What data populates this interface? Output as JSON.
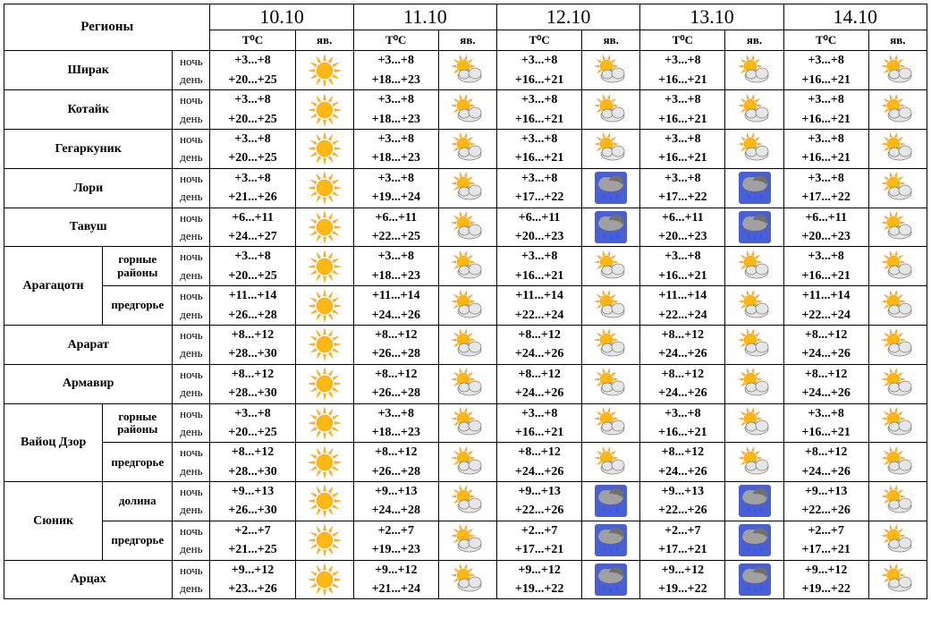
{
  "headers": {
    "regions": "Регионы",
    "temp": "T⁰C",
    "phen": "яв.",
    "night": "ночь",
    "day": "день"
  },
  "dates": [
    "10.10",
    "11.10",
    "12.10",
    "13.10",
    "14.10"
  ],
  "colors": {
    "sun_fill": "#fdb813",
    "sun_stroke": "#f7941d",
    "cloud_fill": "#e6e6e6",
    "cloud_stroke": "#808080",
    "rain_cloud_fill": "#a0a0a0",
    "rain_cloud_dark": "#707070",
    "rain_sky": "#4a5fd0",
    "rain_drop": "#3355ff"
  },
  "rows": [
    {
      "region": "Ширак",
      "sub": "",
      "cells": [
        {
          "n": "+3...+8",
          "d": "+20...+25",
          "icon": "sunny"
        },
        {
          "n": "+3...+8",
          "d": "+18...+23",
          "icon": "partly"
        },
        {
          "n": "+3...+8",
          "d": "+16...+21",
          "icon": "partly"
        },
        {
          "n": "+3...+8",
          "d": "+16...+21",
          "icon": "partly"
        },
        {
          "n": "+3...+8",
          "d": "+16...+21",
          "icon": "partly"
        }
      ]
    },
    {
      "region": "Котайк",
      "sub": "",
      "cells": [
        {
          "n": "+3...+8",
          "d": "+20...+25",
          "icon": "sunny"
        },
        {
          "n": "+3...+8",
          "d": "+18...+23",
          "icon": "partly"
        },
        {
          "n": "+3...+8",
          "d": "+16...+21",
          "icon": "partly"
        },
        {
          "n": "+3...+8",
          "d": "+16...+21",
          "icon": "partly"
        },
        {
          "n": "+3...+8",
          "d": "+16...+21",
          "icon": "partly"
        }
      ]
    },
    {
      "region": "Гегаркуник",
      "sub": "",
      "cells": [
        {
          "n": "+3...+8",
          "d": "+20...+25",
          "icon": "sunny"
        },
        {
          "n": "+3...+8",
          "d": "+18...+23",
          "icon": "partly"
        },
        {
          "n": "+3...+8",
          "d": "+16...+21",
          "icon": "partly"
        },
        {
          "n": "+3...+8",
          "d": "+16...+21",
          "icon": "partly"
        },
        {
          "n": "+3...+8",
          "d": "+16...+21",
          "icon": "partly"
        }
      ]
    },
    {
      "region": "Лори",
      "sub": "",
      "cells": [
        {
          "n": "+3...+8",
          "d": "+21...+26",
          "icon": "sunny"
        },
        {
          "n": "+3...+8",
          "d": "+19...+24",
          "icon": "partly"
        },
        {
          "n": "+3...+8",
          "d": "+17...+22",
          "icon": "rain"
        },
        {
          "n": "+3...+8",
          "d": "+17...+22",
          "icon": "rain"
        },
        {
          "n": "+3...+8",
          "d": "+17...+22",
          "icon": "partly"
        }
      ]
    },
    {
      "region": "Тавуш",
      "sub": "",
      "cells": [
        {
          "n": "+6...+11",
          "d": "+24...+27",
          "icon": "sunny"
        },
        {
          "n": "+6...+11",
          "d": "+22...+25",
          "icon": "partly"
        },
        {
          "n": "+6...+11",
          "d": "+20...+23",
          "icon": "rain"
        },
        {
          "n": "+6...+11",
          "d": "+20...+23",
          "icon": "rain"
        },
        {
          "n": "+6...+11",
          "d": "+20...+23",
          "icon": "partly"
        }
      ]
    },
    {
      "region": "Арагацотн",
      "sub": "горные районы",
      "cells": [
        {
          "n": "+3...+8",
          "d": "+20...+25",
          "icon": "sunny"
        },
        {
          "n": "+3...+8",
          "d": "+18...+23",
          "icon": "partly"
        },
        {
          "n": "+3...+8",
          "d": "+16...+21",
          "icon": "partly"
        },
        {
          "n": "+3...+8",
          "d": "+16...+21",
          "icon": "partly"
        },
        {
          "n": "+3...+8",
          "d": "+16...+21",
          "icon": "partly"
        }
      ]
    },
    {
      "region": "",
      "sub": "предгорье",
      "cells": [
        {
          "n": "+11...+14",
          "d": "+26...+28",
          "icon": "sunny"
        },
        {
          "n": "+11...+14",
          "d": "+24...+26",
          "icon": "partly"
        },
        {
          "n": "+11...+14",
          "d": "+22...+24",
          "icon": "partly"
        },
        {
          "n": "+11...+14",
          "d": "+22...+24",
          "icon": "partly"
        },
        {
          "n": "+11...+14",
          "d": "+22...+24",
          "icon": "partly"
        }
      ]
    },
    {
      "region": "Арарат",
      "sub": "",
      "cells": [
        {
          "n": "+8...+12",
          "d": "+28...+30",
          "icon": "sunny"
        },
        {
          "n": "+8...+12",
          "d": "+26...+28",
          "icon": "partly"
        },
        {
          "n": "+8...+12",
          "d": "+24...+26",
          "icon": "partly"
        },
        {
          "n": "+8...+12",
          "d": "+24...+26",
          "icon": "partly"
        },
        {
          "n": "+8...+12",
          "d": "+24...+26",
          "icon": "partly"
        }
      ]
    },
    {
      "region": "Армавир",
      "sub": "",
      "cells": [
        {
          "n": "+8...+12",
          "d": "+28...+30",
          "icon": "sunny"
        },
        {
          "n": "+8...+12",
          "d": "+26...+28",
          "icon": "partly"
        },
        {
          "n": "+8...+12",
          "d": "+24...+26",
          "icon": "partly"
        },
        {
          "n": "+8...+12",
          "d": "+24...+26",
          "icon": "partly"
        },
        {
          "n": "+8...+12",
          "d": "+24...+26",
          "icon": "partly"
        }
      ]
    },
    {
      "region": "Вайоц Дзор",
      "sub": "горные районы",
      "cells": [
        {
          "n": "+3...+8",
          "d": "+20...+25",
          "icon": "sunny"
        },
        {
          "n": "+3...+8",
          "d": "+18...+23",
          "icon": "partly"
        },
        {
          "n": "+3...+8",
          "d": "+16...+21",
          "icon": "partly"
        },
        {
          "n": "+3...+8",
          "d": "+16...+21",
          "icon": "partly"
        },
        {
          "n": "+3...+8",
          "d": "+16...+21",
          "icon": "partly"
        }
      ]
    },
    {
      "region": "",
      "sub": "предгорье",
      "cells": [
        {
          "n": "+8...+12",
          "d": "+28...+30",
          "icon": "sunny"
        },
        {
          "n": "+8...+12",
          "d": "+26...+28",
          "icon": "partly"
        },
        {
          "n": "+8...+12",
          "d": "+24...+26",
          "icon": "partly"
        },
        {
          "n": "+8...+12",
          "d": "+24...+26",
          "icon": "partly"
        },
        {
          "n": "+8...+12",
          "d": "+24...+26",
          "icon": "partly"
        }
      ]
    },
    {
      "region": "Сюник",
      "sub": "долина",
      "cells": [
        {
          "n": "+9...+13",
          "d": "+26...+30",
          "icon": "sunny"
        },
        {
          "n": "+9...+13",
          "d": "+24...+28",
          "icon": "partly"
        },
        {
          "n": "+9...+13",
          "d": "+22...+26",
          "icon": "rain"
        },
        {
          "n": "+9...+13",
          "d": "+22...+26",
          "icon": "rain"
        },
        {
          "n": "+9...+13",
          "d": "+22...+26",
          "icon": "partly"
        }
      ]
    },
    {
      "region": "",
      "sub": "предгорье",
      "cells": [
        {
          "n": "+2...+7",
          "d": "+21...+25",
          "icon": "sunny"
        },
        {
          "n": "+2...+7",
          "d": "+19...+23",
          "icon": "partly"
        },
        {
          "n": "+2...+7",
          "d": "+17...+21",
          "icon": "rain"
        },
        {
          "n": "+2...+7",
          "d": "+17...+21",
          "icon": "rain"
        },
        {
          "n": "+2...+7",
          "d": "+17...+21",
          "icon": "partly"
        }
      ]
    },
    {
      "region": "Арцах",
      "sub": "",
      "cells": [
        {
          "n": "+9...+12",
          "d": "+23...+26",
          "icon": "sunny"
        },
        {
          "n": "+9...+12",
          "d": "+21...+24",
          "icon": "partly"
        },
        {
          "n": "+9...+12",
          "d": "+19...+22",
          "icon": "rain"
        },
        {
          "n": "+9...+12",
          "d": "+19...+22",
          "icon": "rain"
        },
        {
          "n": "+9...+12",
          "d": "+19...+22",
          "icon": "partly"
        }
      ]
    }
  ],
  "region_spans": [
    {
      "start": 5,
      "span": 2
    },
    {
      "start": 9,
      "span": 2
    },
    {
      "start": 11,
      "span": 2
    }
  ]
}
